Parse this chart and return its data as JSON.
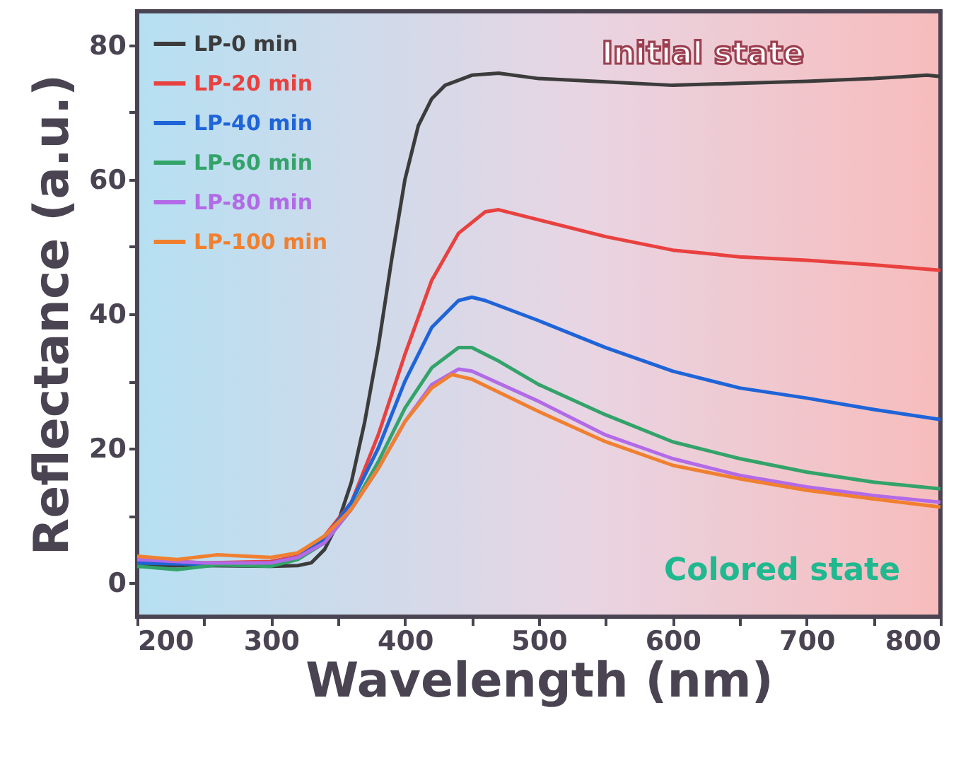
{
  "chart_data": {
    "type": "line",
    "xlabel": "Wavelength (nm)",
    "ylabel": "Reflectance (a.u.)",
    "xlim": [
      200,
      800
    ],
    "xticks": [
      200,
      {
        "value": 250,
        "label": null
      },
      300,
      {
        "value": 350,
        "label": null
      },
      400,
      {
        "value": 450,
        "label": null
      },
      500,
      {
        "value": 550,
        "label": null
      },
      600,
      {
        "value": 650,
        "label": null
      },
      700,
      {
        "value": 750,
        "label": null
      },
      800
    ],
    "ylim": [
      -5,
      85
    ],
    "yticks": [
      0,
      {
        "value": 10,
        "label": null
      },
      20,
      {
        "value": 30,
        "label": null
      },
      40,
      {
        "value": 50,
        "label": null
      },
      60,
      {
        "value": 70,
        "label": null
      },
      80
    ],
    "grid": false,
    "legend": "top left",
    "marker": "none",
    "line_style": "solid",
    "annotations": [
      "Initial state",
      "Colored state"
    ],
    "series": [
      {
        "name": "LP-0 min",
        "color": "#3c3c3c",
        "x": [
          200,
          250,
          300,
          320,
          330,
          340,
          350,
          360,
          370,
          380,
          390,
          400,
          410,
          420,
          430,
          450,
          470,
          500,
          550,
          600,
          650,
          700,
          750,
          790,
          800
        ],
        "values": [
          2.5,
          2.6,
          2.5,
          2.6,
          3,
          5,
          9,
          15,
          24,
          35,
          48,
          60,
          68,
          72,
          74,
          75.5,
          75.8,
          75,
          74.5,
          74,
          74.3,
          74.6,
          75,
          75.5,
          75.3
        ]
      },
      {
        "name": "LP-20 min",
        "color": "#e8413f",
        "x": [
          200,
          250,
          300,
          320,
          340,
          360,
          380,
          400,
          420,
          440,
          460,
          470,
          500,
          550,
          600,
          650,
          700,
          750,
          800
        ],
        "values": [
          3.5,
          3,
          3.2,
          4,
          7,
          12,
          22,
          34,
          45,
          52,
          55.2,
          55.5,
          54,
          51.5,
          49.5,
          48.5,
          48,
          47.3,
          46.5
        ]
      },
      {
        "name": "LP-40 min",
        "color": "#1f64d8",
        "x": [
          200,
          250,
          300,
          320,
          340,
          360,
          380,
          400,
          420,
          440,
          450,
          460,
          500,
          550,
          600,
          650,
          700,
          750,
          800
        ],
        "values": [
          3,
          2.8,
          3,
          3.8,
          6.5,
          12,
          20,
          30,
          38,
          42,
          42.5,
          42,
          39,
          35,
          31.5,
          29,
          27.5,
          25.8,
          24.3
        ]
      },
      {
        "name": "LP-60 min",
        "color": "#33a36a",
        "x": [
          200,
          230,
          260,
          300,
          320,
          340,
          360,
          380,
          400,
          420,
          440,
          450,
          470,
          500,
          550,
          600,
          650,
          700,
          750,
          800
        ],
        "values": [
          2.5,
          2,
          2.7,
          2.5,
          3.5,
          6,
          11,
          18,
          26,
          32,
          35,
          35,
          33,
          29.5,
          25,
          21,
          18.5,
          16.5,
          15,
          14
        ]
      },
      {
        "name": "LP-80 min",
        "color": "#b26ae6",
        "x": [
          200,
          250,
          300,
          320,
          340,
          360,
          380,
          400,
          420,
          440,
          450,
          500,
          550,
          600,
          650,
          700,
          750,
          800
        ],
        "values": [
          3.5,
          3,
          3,
          3.8,
          6,
          11,
          17,
          24,
          29.5,
          31.8,
          31.5,
          27,
          22,
          18.5,
          16,
          14.3,
          13,
          12
        ]
      },
      {
        "name": "LP-100 min",
        "color": "#f08030",
        "x": [
          200,
          230,
          260,
          300,
          320,
          340,
          360,
          380,
          400,
          420,
          435,
          450,
          500,
          550,
          600,
          650,
          700,
          750,
          800
        ],
        "values": [
          4,
          3.5,
          4.2,
          3.8,
          4.5,
          7,
          11,
          17,
          24,
          29,
          31,
          30.3,
          25.5,
          21,
          17.5,
          15.5,
          13.8,
          12.5,
          11.3
        ]
      }
    ]
  }
}
